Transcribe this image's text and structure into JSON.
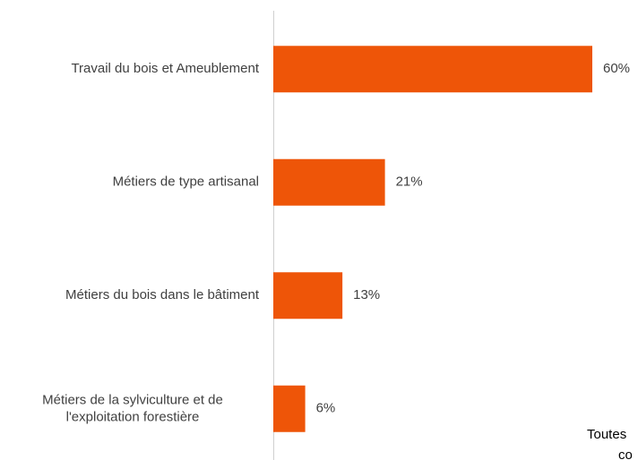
{
  "chart_data": {
    "type": "bar",
    "orientation": "horizontal",
    "categories": [
      "Travail du bois et Ameublement",
      "Métiers de type artisanal",
      "Métiers du bois dans le bâtiment",
      [
        "Métiers de la sylviculture et de",
        "l'exploitation forestière"
      ]
    ],
    "values": [
      60,
      21,
      13,
      6
    ],
    "value_labels": [
      "60%",
      "21%",
      "13%",
      "6%"
    ],
    "color": "#ee5508",
    "annotation": [
      "Toutes",
      "co"
    ]
  }
}
